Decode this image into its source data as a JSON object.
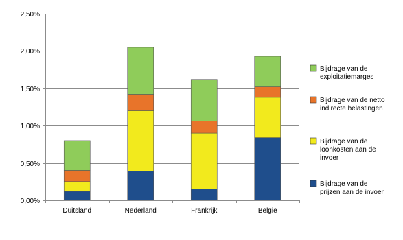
{
  "chart_data": {
    "type": "bar",
    "stacked": true,
    "title": "",
    "xlabel": "",
    "ylabel": "",
    "categories": [
      "Duitsland",
      "Nederland",
      "Frankrijk",
      "België"
    ],
    "ylim": [
      0,
      2.5
    ],
    "yticks": [
      "0,00%",
      "0,50%",
      "1,00%",
      "1,50%",
      "2,00%",
      "2,50%"
    ],
    "ytick_values": [
      0,
      0.5,
      1.0,
      1.5,
      2.0,
      2.5
    ],
    "grid": true,
    "legend_position": "right",
    "series": [
      {
        "name": "Bijdrage van de prijzen aan de invoer",
        "legend_lines": [
          "Bijdrage van de",
          "prijzen aan de invoer"
        ],
        "color": "#1f4e8c",
        "values": [
          0.12,
          0.39,
          0.15,
          0.84
        ]
      },
      {
        "name": "Bijdrage van de loonkosten aan de invoer",
        "legend_lines": [
          "Bijdrage van de",
          "loonkosten aan de",
          "invoer"
        ],
        "color": "#f2ea1d",
        "values": [
          0.13,
          0.81,
          0.75,
          0.54
        ]
      },
      {
        "name": "Bijdrage van de netto indirecte belastingen",
        "legend_lines": [
          "Bijdrage van de netto",
          "indirecte belastingen"
        ],
        "color": "#e8742a",
        "values": [
          0.15,
          0.22,
          0.16,
          0.14
        ]
      },
      {
        "name": "Bijdrage van de exploitatiemarges",
        "legend_lines": [
          "Bijdrage van de",
          "exploitatiemarges"
        ],
        "color": "#8fcc5a",
        "values": [
          0.4,
          0.63,
          0.56,
          0.41
        ]
      }
    ],
    "legend_order": [
      3,
      2,
      1,
      0
    ]
  }
}
